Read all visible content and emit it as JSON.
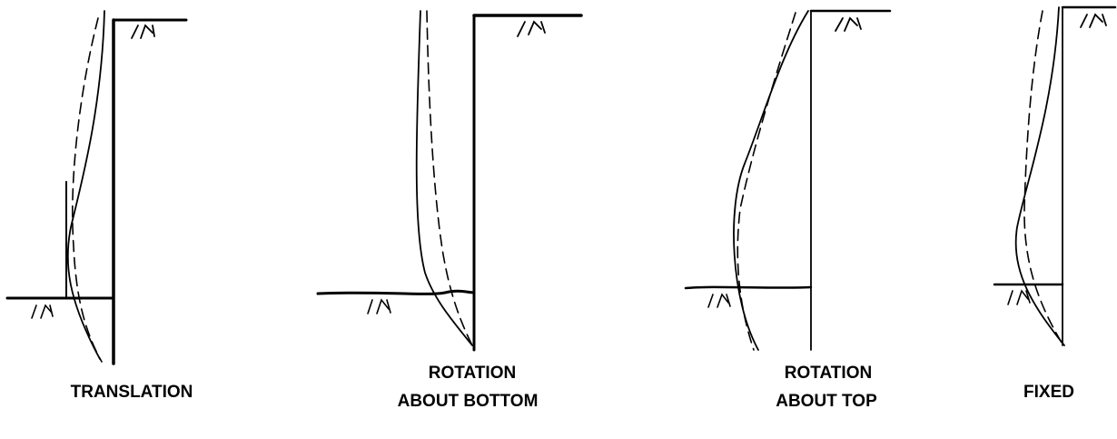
{
  "panels": [
    {
      "label": [
        "TRANSLATION"
      ]
    },
    {
      "label": [
        "ROTATION",
        "ABOUT BOTTOM"
      ]
    },
    {
      "label": [
        "ROTATION",
        "ABOUT TOP"
      ]
    },
    {
      "label": [
        "FIXED"
      ]
    }
  ]
}
